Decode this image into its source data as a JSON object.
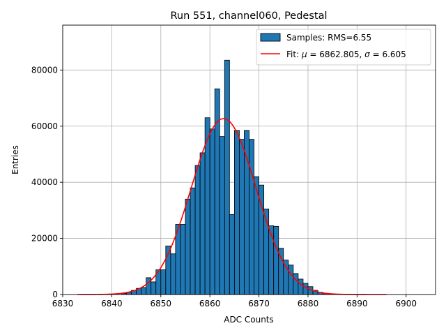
{
  "chart_data": {
    "type": "bar",
    "title": "Run 551, channel060, Pedestal",
    "xlabel": "ADC Counts",
    "ylabel": "Entries",
    "xlim": [
      6830,
      6906
    ],
    "ylim": [
      0,
      96000
    ],
    "xticks": [
      6830,
      6840,
      6850,
      6860,
      6870,
      6880,
      6890,
      6900
    ],
    "yticks": [
      0,
      20000,
      40000,
      60000,
      80000
    ],
    "grid": true,
    "legend_position": "top-right",
    "bin_width": 1,
    "bar_color": "#1f77b4",
    "fit_color": "#ff0000",
    "legend": {
      "samples_label": "Samples: RMS=6.55",
      "fit_prefix": "Fit: ",
      "fit_mu": "μ",
      "fit_mid": " = 6862.805, ",
      "fit_sigma": "σ",
      "fit_suffix": " = 6.605"
    },
    "histogram": {
      "bin_starts": [
        6842,
        6843,
        6844,
        6845,
        6846,
        6847,
        6848,
        6849,
        6850,
        6851,
        6852,
        6853,
        6854,
        6855,
        6856,
        6857,
        6858,
        6859,
        6860,
        6861,
        6862,
        6863,
        6864,
        6865,
        6866,
        6867,
        6868,
        6869,
        6870,
        6871,
        6872,
        6873,
        6874,
        6875,
        6876,
        6877,
        6878,
        6879,
        6880,
        6881,
        6882,
        6883,
        6884
      ],
      "counts": [
        400,
        800,
        1500,
        2200,
        2500,
        6000,
        4500,
        8800,
        8800,
        17300,
        14500,
        25000,
        25000,
        34000,
        38000,
        46000,
        50500,
        63000,
        59000,
        73300,
        56300,
        83500,
        28500,
        58500,
        55300,
        58500,
        55300,
        42000,
        39000,
        30500,
        24500,
        24300,
        16500,
        12300,
        10500,
        7500,
        5500,
        4000,
        2800,
        1500,
        800,
        400,
        200
      ]
    },
    "fit": {
      "mu": 6862.805,
      "sigma": 6.605,
      "amplitude": 62700,
      "x_range": [
        6833,
        6896
      ]
    }
  }
}
